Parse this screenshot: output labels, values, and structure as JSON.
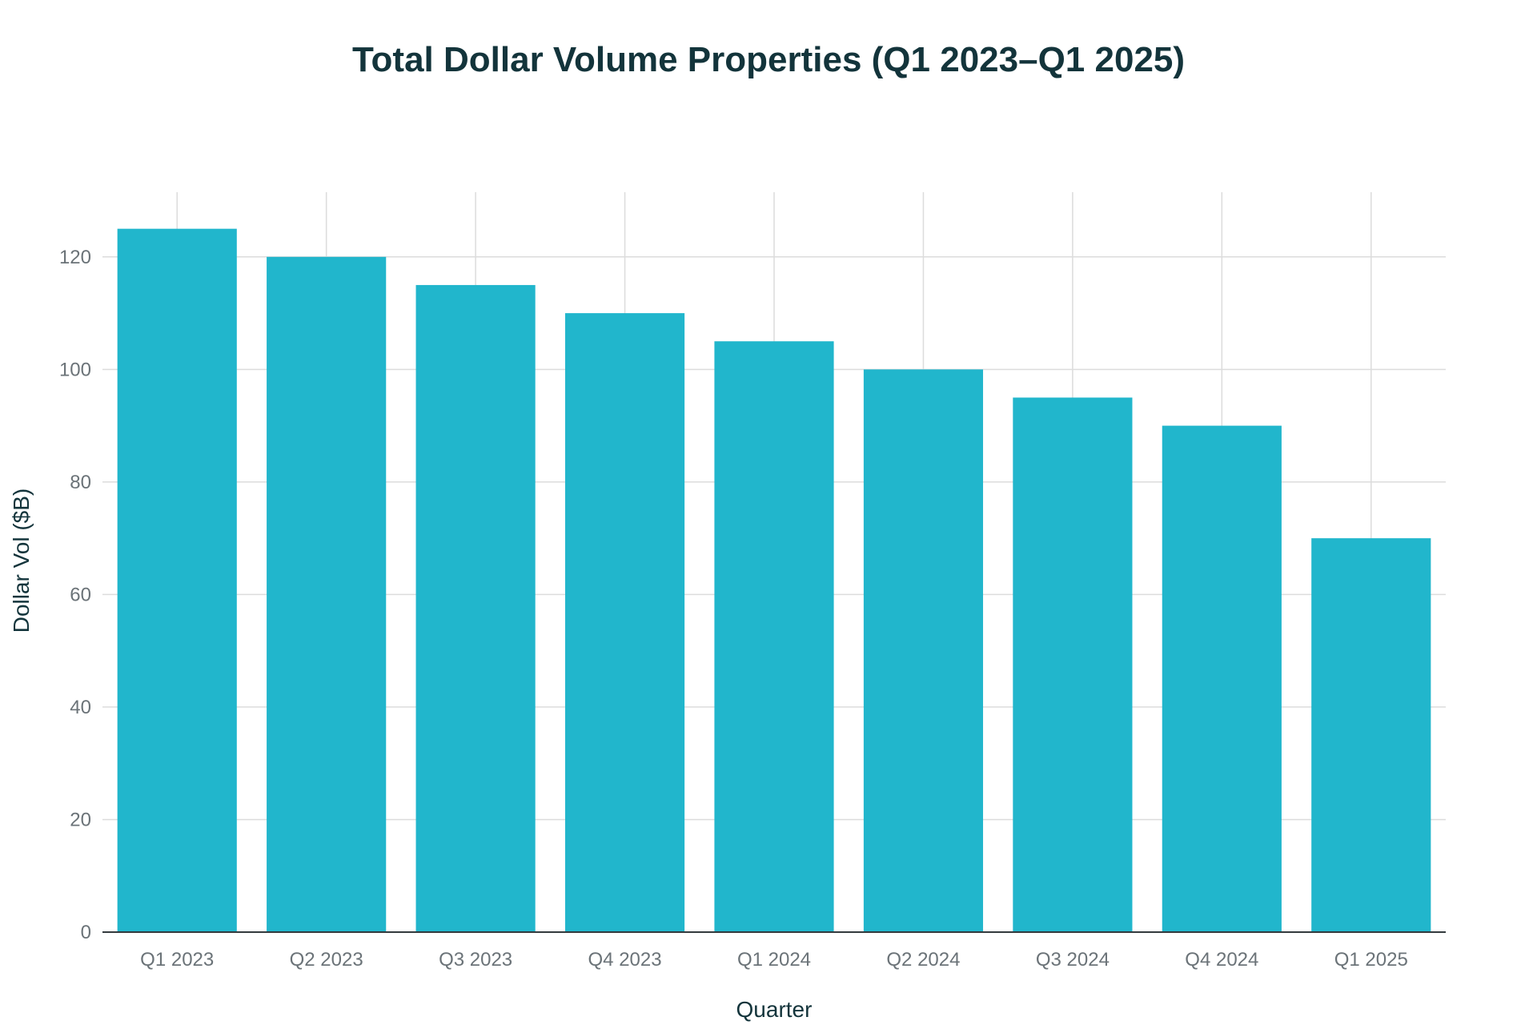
{
  "chart_data": {
    "type": "bar",
    "title": "Total Dollar Volume Properties (Q1 2023–Q1 2025)",
    "xlabel": "Quarter",
    "ylabel": "Dollar Vol ($B)",
    "categories": [
      "Q1 2023",
      "Q2 2023",
      "Q3 2023",
      "Q4 2023",
      "Q1 2024",
      "Q2 2024",
      "Q3 2024",
      "Q4 2024",
      "Q1 2025"
    ],
    "values": [
      125,
      120,
      115,
      110,
      105,
      100,
      95,
      90,
      70
    ],
    "ylim": [
      0,
      131.5
    ],
    "yticks": [
      0,
      20,
      40,
      60,
      80,
      100,
      120
    ],
    "grid": true,
    "legend": "none",
    "bar_color": "#21b6cc"
  }
}
